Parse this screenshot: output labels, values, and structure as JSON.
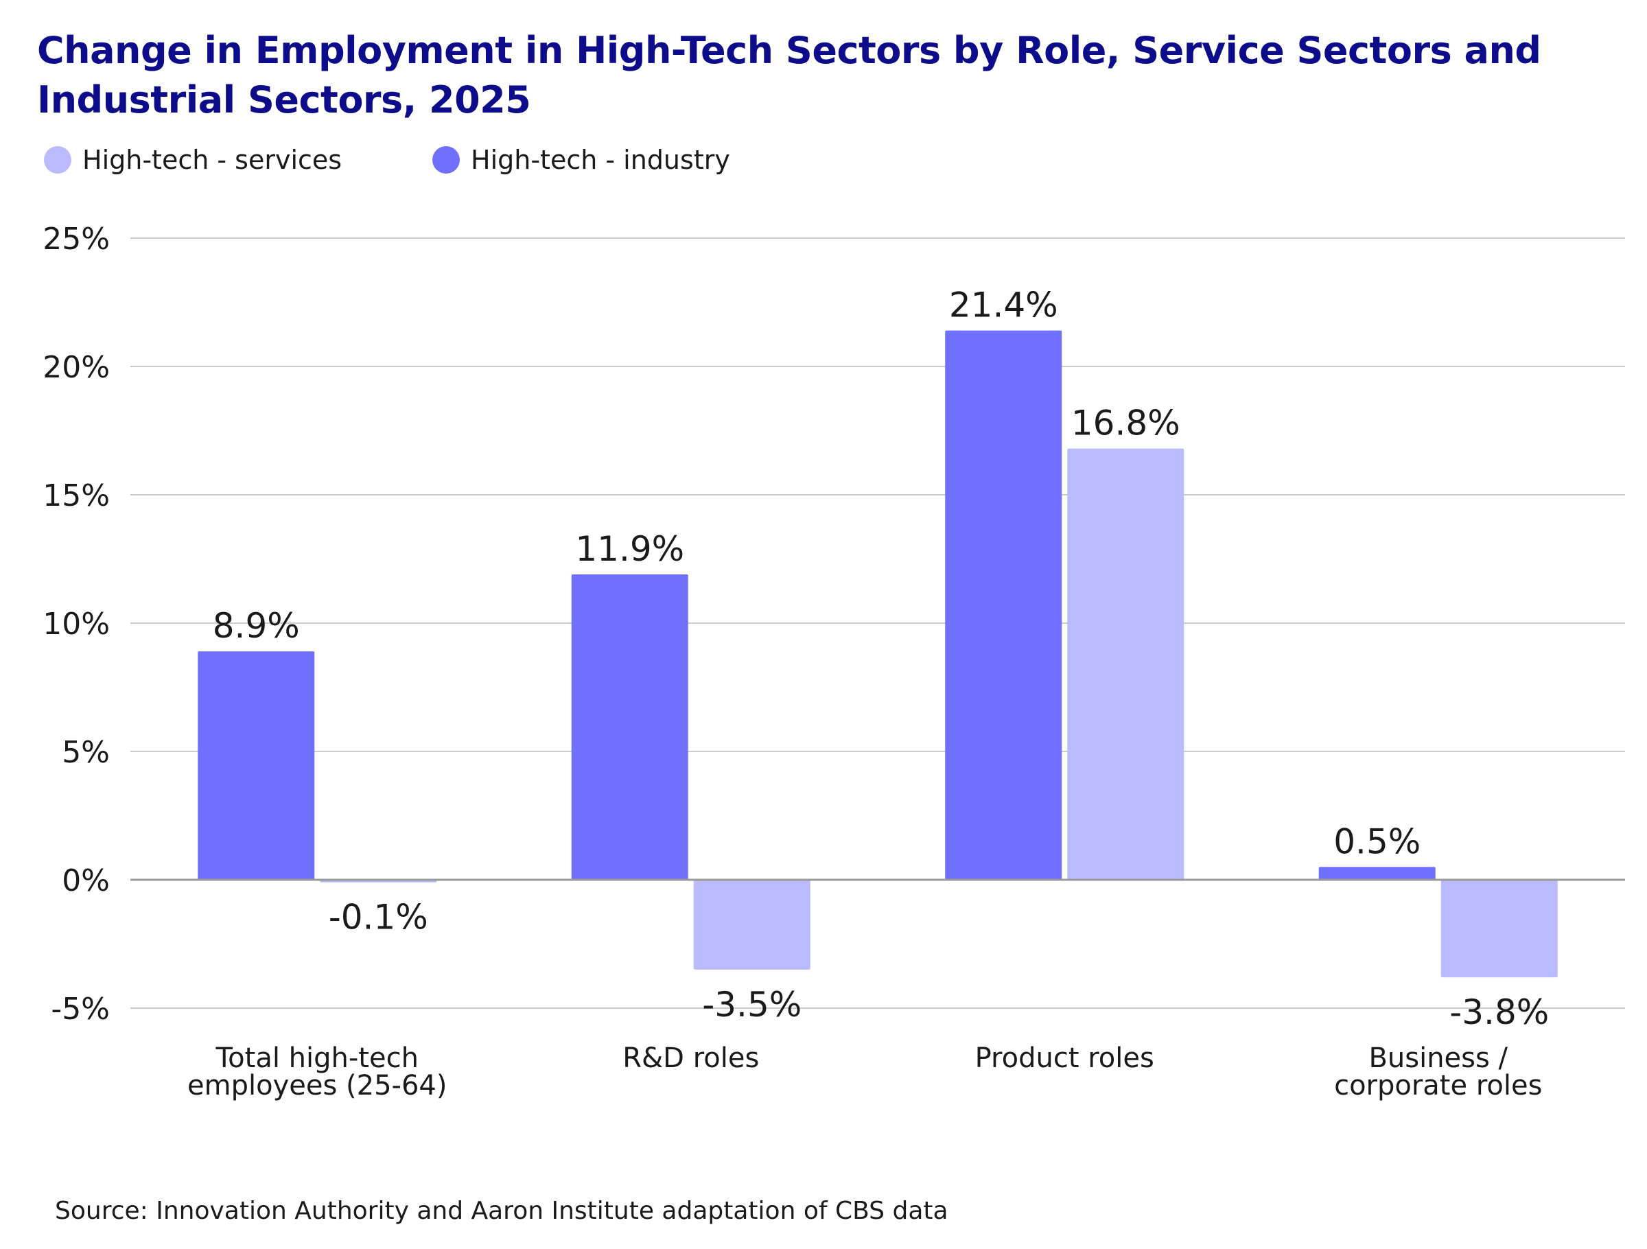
{
  "title": "Change in Employment in High-Tech Sectors by Role, Service Sectors and Industrial Sectors, 2025",
  "source": "Source: Innovation Authority and Aaron Institute adaptation of CBS data",
  "colors": {
    "title": "#0d0d8c",
    "industry": "#7070ff",
    "services": "#babaff",
    "grid": "#cccccc",
    "zero_line": "#999999",
    "text": "#1a1a1a"
  },
  "legend": [
    {
      "label": "High-tech - services",
      "color": "#babaff"
    },
    {
      "label": "High-tech - industry",
      "color": "#7070ff"
    }
  ],
  "chart_data": {
    "type": "bar",
    "title": "Change in Employment in High-Tech Sectors by Role, Service Sectors and Industrial Sectors, 2025",
    "xlabel": "",
    "ylabel": "",
    "categories": [
      [
        "Total high-tech",
        "employees (25-64)"
      ],
      [
        "R&D roles"
      ],
      [
        "Product roles"
      ],
      [
        "Business /",
        "corporate roles"
      ]
    ],
    "series": [
      {
        "name": "High-tech - industry",
        "color": "#7070ff",
        "values": [
          8.9,
          11.9,
          21.4,
          0.5
        ],
        "labels": [
          "8.9%",
          "11.9%",
          "21.4%",
          "0.5%"
        ]
      },
      {
        "name": "High-tech - services",
        "color": "#babaff",
        "values": [
          -0.1,
          -3.5,
          16.8,
          -3.8
        ],
        "labels": [
          "-0.1%",
          "-3.5%",
          "16.8%",
          "-3.8%"
        ]
      }
    ],
    "ylim": [
      -5,
      25
    ],
    "yticks": [
      25,
      20,
      15,
      10,
      5,
      0,
      -5
    ],
    "ytick_labels": [
      "25%",
      "20%",
      "15%",
      "10%",
      "5%",
      "0%",
      "-5%"
    ],
    "grid": true,
    "legend_position": "top-left"
  }
}
